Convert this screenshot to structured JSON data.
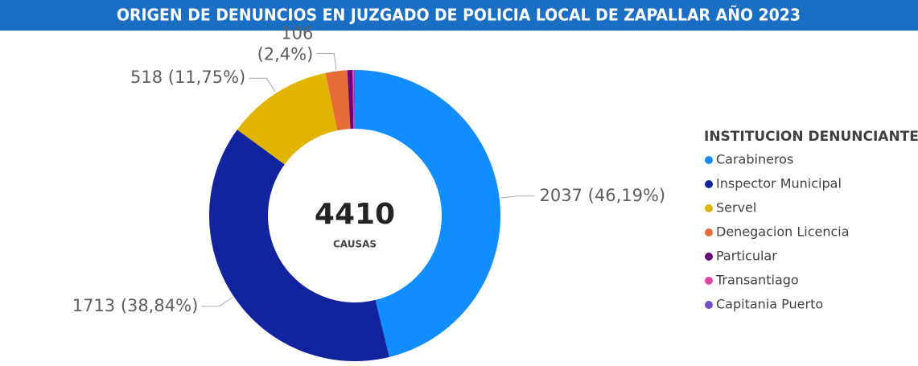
{
  "chart_data": {
    "type": "donut",
    "title": "ORIGEN DE DENUNCIOS EN JUZGADO DE POLICIA LOCAL DE ZAPALLAR AÑO 2023",
    "center_value": 4410,
    "center_label": "CAUSAS",
    "legend_title": "INSTITUCION DENUNCIANTE",
    "legend": "right",
    "categories": [
      "Carabineros",
      "Inspector Municipal",
      "Servel",
      "Denegacion Licencia",
      "Particular",
      "Transantiago",
      "Capitania Puerto"
    ],
    "values": [
      2037,
      1713,
      518,
      106,
      25,
      6,
      5
    ],
    "value_labels": [
      "2037 (46,19%)",
      "1713 (38,84%)",
      "518 (11,75%)",
      "106 (2,4%)",
      null,
      null,
      null
    ],
    "colors": [
      "#118DFF",
      "#12239E",
      "#E0B400",
      "#E66C37",
      "#6B007B",
      "#E044A7",
      "#744EC2"
    ]
  }
}
